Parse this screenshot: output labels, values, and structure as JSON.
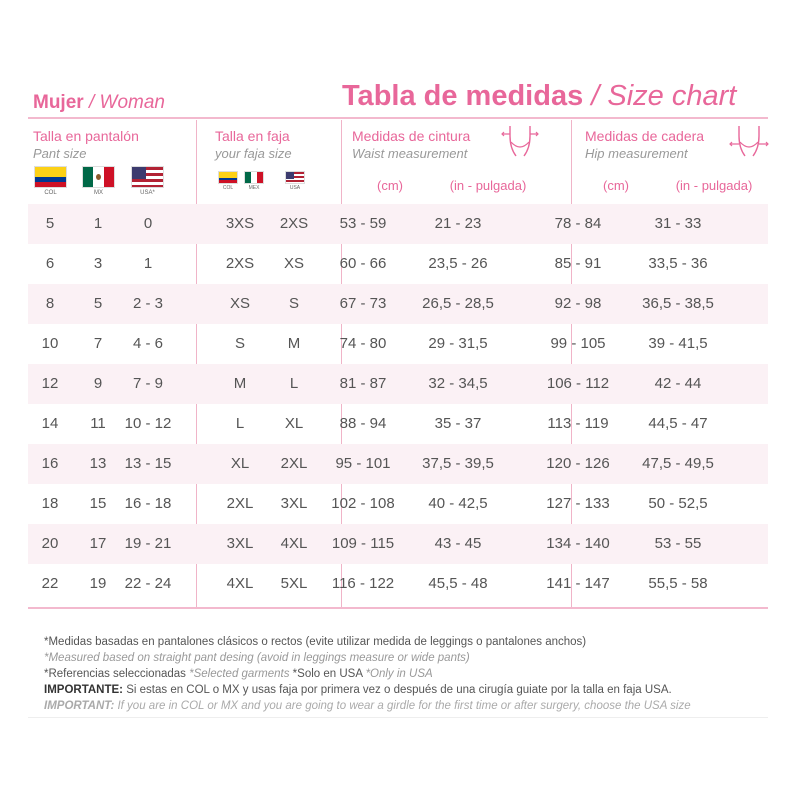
{
  "header": {
    "left_bold": "Mujer",
    "left_italic": "/ Woman",
    "title_bold": "Tabla de medidas",
    "title_italic": "/ Size chart"
  },
  "columns": {
    "pant": {
      "title": "Talla en pantalón",
      "subtitle": "Pant size",
      "flags": [
        "COL",
        "MX",
        "USA*"
      ]
    },
    "faja": {
      "title": "Talla en faja",
      "subtitle": "your faja size",
      "flags": [
        "COL",
        "MEX",
        "USA"
      ]
    },
    "waist": {
      "title": "Medidas de cintura",
      "subtitle": "Waist measurement",
      "unit_cm": "(cm)",
      "unit_in": "(in - pulgada)",
      "icon": "waist-icon"
    },
    "hip": {
      "title": "Medidas de cadera",
      "subtitle": "Hip measurement",
      "unit_cm": "(cm)",
      "unit_in": "(in - pulgada)",
      "icon": "hip-icon"
    }
  },
  "colors": {
    "accent": "#e8679a",
    "row_alt": "#fbf1f5",
    "rule": "#f3b9ce"
  },
  "rows": [
    {
      "col": "5",
      "mx": "1",
      "usa": "0",
      "faja_a": "3XS",
      "faja_b": "2XS",
      "waist_cm": "53 - 59",
      "waist_in": "21 - 23",
      "hip_cm": "78 - 84",
      "hip_in": "31 - 33"
    },
    {
      "col": "6",
      "mx": "3",
      "usa": "1",
      "faja_a": "2XS",
      "faja_b": "XS",
      "waist_cm": "60 - 66",
      "waist_in": "23,5 - 26",
      "hip_cm": "85 - 91",
      "hip_in": "33,5 - 36"
    },
    {
      "col": "8",
      "mx": "5",
      "usa": "2 - 3",
      "faja_a": "XS",
      "faja_b": "S",
      "waist_cm": "67 - 73",
      "waist_in": "26,5 - 28,5",
      "hip_cm": "92 - 98",
      "hip_in": "36,5 - 38,5"
    },
    {
      "col": "10",
      "mx": "7",
      "usa": "4 - 6",
      "faja_a": "S",
      "faja_b": "M",
      "waist_cm": "74 - 80",
      "waist_in": "29 - 31,5",
      "hip_cm": "99 - 105",
      "hip_in": "39 - 41,5"
    },
    {
      "col": "12",
      "mx": "9",
      "usa": "7 - 9",
      "faja_a": "M",
      "faja_b": "L",
      "waist_cm": "81 - 87",
      "waist_in": "32 - 34,5",
      "hip_cm": "106 - 112",
      "hip_in": "42 - 44"
    },
    {
      "col": "14",
      "mx": "11",
      "usa": "10 - 12",
      "faja_a": "L",
      "faja_b": "XL",
      "waist_cm": "88 - 94",
      "waist_in": "35 - 37",
      "hip_cm": "113 - 119",
      "hip_in": "44,5 - 47"
    },
    {
      "col": "16",
      "mx": "13",
      "usa": "13 - 15",
      "faja_a": "XL",
      "faja_b": "2XL",
      "waist_cm": "95 - 101",
      "waist_in": "37,5 - 39,5",
      "hip_cm": "120 - 126",
      "hip_in": "47,5 - 49,5"
    },
    {
      "col": "18",
      "mx": "15",
      "usa": "16 - 18",
      "faja_a": "2XL",
      "faja_b": "3XL",
      "waist_cm": "102 - 108",
      "waist_in": "40 - 42,5",
      "hip_cm": "127 - 133",
      "hip_in": "50 - 52,5"
    },
    {
      "col": "20",
      "mx": "17",
      "usa": "19 - 21",
      "faja_a": "3XL",
      "faja_b": "4XL",
      "waist_cm": "109 - 115",
      "waist_in": "43 - 45",
      "hip_cm": "134 - 140",
      "hip_in": "53 - 55"
    },
    {
      "col": "22",
      "mx": "19",
      "usa": "22 - 24",
      "faja_a": "4XL",
      "faja_b": "5XL",
      "waist_cm": "116 - 122",
      "waist_in": "45,5 - 48",
      "hip_cm": "141 - 147",
      "hip_in": "55,5 - 58"
    }
  ],
  "footnotes": {
    "line1": "*Medidas basadas en pantalones clásicos o rectos (evite utilizar medida de leggings o pantalones anchos)",
    "line2": "*Measured based on straight pant desing (avoid in leggings measure or wide pants)",
    "line3_a": "*Referencias seleccionadas ",
    "line3_b": "*Selected garments",
    "line3_c": " *Solo en USA ",
    "line3_d": "*Only in USA",
    "imp_es_label": "IMPORTANTE:",
    "imp_es_text": " Si estas en COL o MX y usas faja por primera vez o después de una cirugía guiate por la talla en faja USA.",
    "imp_en_label": "IMPORTANT:",
    "imp_en_text": " If you are in COL or MX and you are going to wear a girdle for the first time or after surgery, choose the USA size"
  }
}
